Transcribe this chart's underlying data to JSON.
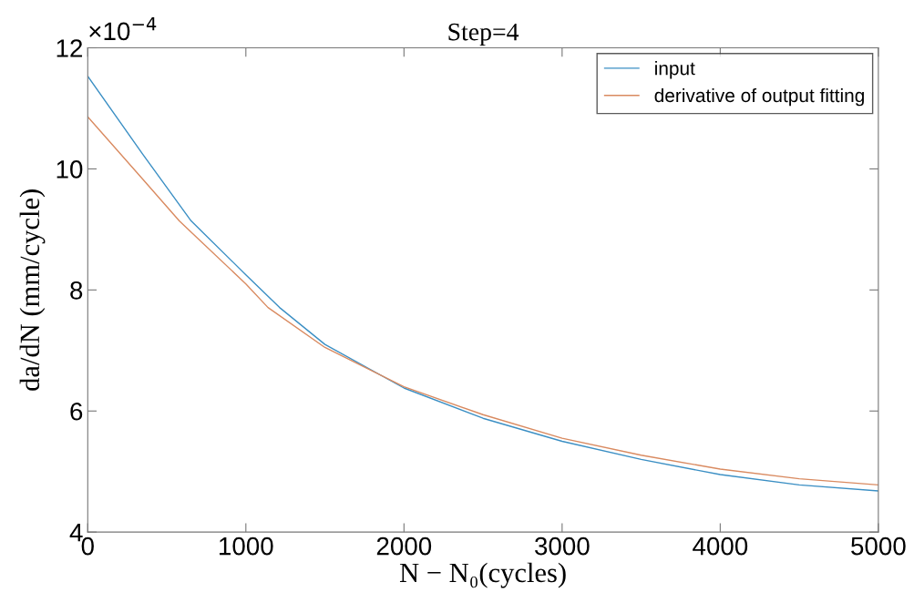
{
  "chart_data": {
    "type": "line",
    "title": "Step=4",
    "xlabel": "N − N₀(cycles)",
    "ylabel": "da/dN (mm/cycle)",
    "annotations": [
      "×10$^{−4}$"
    ],
    "xlim": [
      0,
      5000
    ],
    "xticks": [
      0,
      1000,
      2000,
      3000,
      4000,
      5000
    ],
    "ylim": [
      4,
      12
    ],
    "yticks": [
      4,
      6,
      8,
      10,
      12
    ],
    "grid": false,
    "legend": "top right",
    "marker": "none",
    "line_style": "solid",
    "series": [
      {
        "name": "input",
        "color": "#3b8fc4",
        "x": [
          0,
          348,
          654,
          1000,
          1213,
          1500,
          2000,
          2500,
          3000,
          3500,
          4000,
          4500,
          5000
        ],
        "values": [
          11.53,
          10.24,
          9.14,
          8.25,
          7.71,
          7.1,
          6.38,
          5.88,
          5.5,
          5.2,
          4.95,
          4.78,
          4.68
        ]
      },
      {
        "name": "derivative of output fitting",
        "color": "#d98a60",
        "x": [
          0,
          348,
          579,
          1000,
          1140,
          1500,
          2000,
          2500,
          3000,
          3500,
          4000,
          4500,
          5000
        ],
        "values": [
          10.86,
          9.83,
          9.14,
          8.1,
          7.71,
          7.05,
          6.4,
          5.94,
          5.55,
          5.27,
          5.04,
          4.88,
          4.78
        ]
      }
    ]
  }
}
